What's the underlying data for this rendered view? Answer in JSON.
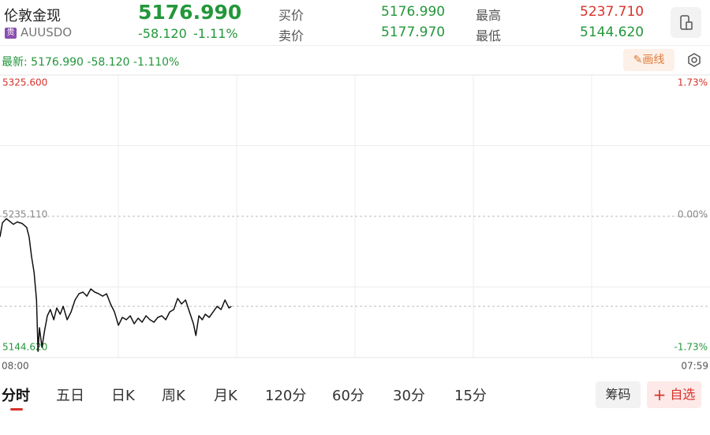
{
  "header": {
    "name": "伦敦金现",
    "badge": "贵",
    "code": "AUUSDO",
    "price": "5176.990",
    "change": "-58.120",
    "change_percent": "-1.11%",
    "bid_label": "买价",
    "bid": "5176.990",
    "ask_label": "卖价",
    "ask": "5177.970",
    "high_label": "最高",
    "high": "5237.710",
    "low_label": "最低",
    "low": "5144.620",
    "latest": "最新: 5176.990  -58.120  -1.110%",
    "draw": "✎画线"
  },
  "chart_data": {
    "type": "line",
    "color": "#111111",
    "x": [
      0,
      5,
      13,
      19,
      27,
      35,
      45,
      54,
      59,
      64,
      69,
      74,
      77,
      80,
      85,
      90,
      96,
      102,
      109,
      115,
      122,
      128,
      136,
      144,
      152,
      160,
      168,
      176,
      184,
      192,
      200,
      208,
      216,
      224,
      232,
      240,
      248,
      256,
      264,
      272,
      280,
      288,
      296,
      304,
      312,
      320,
      328,
      336,
      344,
      352,
      360,
      368,
      376,
      384,
      392,
      397,
      403,
      410,
      416,
      424,
      432,
      440,
      448,
      456,
      464,
      469
    ],
    "values": [
      5221.9,
      5231.0,
      5233.6,
      5232.1,
      5230.0,
      5231.5,
      5230.5,
      5228.0,
      5221.9,
      5209.3,
      5199.2,
      5181.5,
      5148.6,
      5163.8,
      5151.2,
      5161.3,
      5171.4,
      5175.4,
      5168.9,
      5176.4,
      5172.4,
      5177.5,
      5168.9,
      5173.9,
      5181.5,
      5185.5,
      5186.6,
      5184.0,
      5188.6,
      5186.6,
      5185.5,
      5184.0,
      5185.5,
      5179.0,
      5173.9,
      5165.3,
      5170.4,
      5168.9,
      5171.4,
      5166.3,
      5169.9,
      5167.3,
      5171.4,
      5168.9,
      5167.3,
      5170.4,
      5171.4,
      5168.9,
      5173.9,
      5175.4,
      5182.5,
      5179.0,
      5181.5,
      5173.9,
      5166.3,
      5158.8,
      5171.4,
      5168.9,
      5172.4,
      5170.4,
      5173.9,
      5177.5,
      5175.4,
      5181.5,
      5176.4,
      5177.5
    ],
    "xlim": [
      0,
      1439
    ],
    "xticks": [
      {
        "value": 0,
        "label": "08:00"
      },
      {
        "value": 1439,
        "label": "07:59"
      }
    ],
    "ylim": [
      5144.62,
      5325.6
    ],
    "yticks": [
      {
        "value": 5325.6,
        "label": "5325.600"
      },
      {
        "value": 5235.11,
        "label": "5235.110"
      },
      {
        "value": 5144.62,
        "label": "5144.620"
      }
    ],
    "y2lim": [
      -1.73,
      1.73
    ],
    "y2ticks": [
      {
        "value": 1.73,
        "label": "1.73%"
      },
      {
        "value": 0,
        "label": "0.00%"
      },
      {
        "value": -1.73,
        "label": "-1.73%"
      }
    ]
  },
  "tabs": [
    "分时",
    "五日",
    "日K",
    "周K",
    "月K",
    "120分",
    "60分",
    "30分",
    "15分"
  ],
  "buttons": {
    "chips": "筹码",
    "watchlist": "自选"
  }
}
